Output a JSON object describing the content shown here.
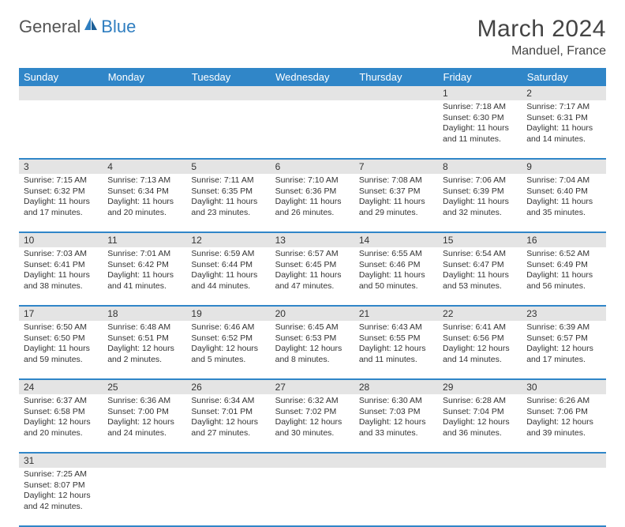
{
  "logo": {
    "text1": "General",
    "text2": "Blue"
  },
  "title": "March 2024",
  "location": "Manduel, France",
  "colors": {
    "header_bg": "#3086c8",
    "header_text": "#ffffff",
    "daynum_bg": "#e4e4e4",
    "row_divider": "#3086c8",
    "logo_blue": "#2f7ec0",
    "text": "#333333",
    "background": "#ffffff"
  },
  "weekdays": [
    "Sunday",
    "Monday",
    "Tuesday",
    "Wednesday",
    "Thursday",
    "Friday",
    "Saturday"
  ],
  "weeks": [
    [
      null,
      null,
      null,
      null,
      null,
      {
        "n": "1",
        "sr": "7:18 AM",
        "ss": "6:30 PM",
        "dl": "11 hours and 11 minutes."
      },
      {
        "n": "2",
        "sr": "7:17 AM",
        "ss": "6:31 PM",
        "dl": "11 hours and 14 minutes."
      }
    ],
    [
      {
        "n": "3",
        "sr": "7:15 AM",
        "ss": "6:32 PM",
        "dl": "11 hours and 17 minutes."
      },
      {
        "n": "4",
        "sr": "7:13 AM",
        "ss": "6:34 PM",
        "dl": "11 hours and 20 minutes."
      },
      {
        "n": "5",
        "sr": "7:11 AM",
        "ss": "6:35 PM",
        "dl": "11 hours and 23 minutes."
      },
      {
        "n": "6",
        "sr": "7:10 AM",
        "ss": "6:36 PM",
        "dl": "11 hours and 26 minutes."
      },
      {
        "n": "7",
        "sr": "7:08 AM",
        "ss": "6:37 PM",
        "dl": "11 hours and 29 minutes."
      },
      {
        "n": "8",
        "sr": "7:06 AM",
        "ss": "6:39 PM",
        "dl": "11 hours and 32 minutes."
      },
      {
        "n": "9",
        "sr": "7:04 AM",
        "ss": "6:40 PM",
        "dl": "11 hours and 35 minutes."
      }
    ],
    [
      {
        "n": "10",
        "sr": "7:03 AM",
        "ss": "6:41 PM",
        "dl": "11 hours and 38 minutes."
      },
      {
        "n": "11",
        "sr": "7:01 AM",
        "ss": "6:42 PM",
        "dl": "11 hours and 41 minutes."
      },
      {
        "n": "12",
        "sr": "6:59 AM",
        "ss": "6:44 PM",
        "dl": "11 hours and 44 minutes."
      },
      {
        "n": "13",
        "sr": "6:57 AM",
        "ss": "6:45 PM",
        "dl": "11 hours and 47 minutes."
      },
      {
        "n": "14",
        "sr": "6:55 AM",
        "ss": "6:46 PM",
        "dl": "11 hours and 50 minutes."
      },
      {
        "n": "15",
        "sr": "6:54 AM",
        "ss": "6:47 PM",
        "dl": "11 hours and 53 minutes."
      },
      {
        "n": "16",
        "sr": "6:52 AM",
        "ss": "6:49 PM",
        "dl": "11 hours and 56 minutes."
      }
    ],
    [
      {
        "n": "17",
        "sr": "6:50 AM",
        "ss": "6:50 PM",
        "dl": "11 hours and 59 minutes."
      },
      {
        "n": "18",
        "sr": "6:48 AM",
        "ss": "6:51 PM",
        "dl": "12 hours and 2 minutes."
      },
      {
        "n": "19",
        "sr": "6:46 AM",
        "ss": "6:52 PM",
        "dl": "12 hours and 5 minutes."
      },
      {
        "n": "20",
        "sr": "6:45 AM",
        "ss": "6:53 PM",
        "dl": "12 hours and 8 minutes."
      },
      {
        "n": "21",
        "sr": "6:43 AM",
        "ss": "6:55 PM",
        "dl": "12 hours and 11 minutes."
      },
      {
        "n": "22",
        "sr": "6:41 AM",
        "ss": "6:56 PM",
        "dl": "12 hours and 14 minutes."
      },
      {
        "n": "23",
        "sr": "6:39 AM",
        "ss": "6:57 PM",
        "dl": "12 hours and 17 minutes."
      }
    ],
    [
      {
        "n": "24",
        "sr": "6:37 AM",
        "ss": "6:58 PM",
        "dl": "12 hours and 20 minutes."
      },
      {
        "n": "25",
        "sr": "6:36 AM",
        "ss": "7:00 PM",
        "dl": "12 hours and 24 minutes."
      },
      {
        "n": "26",
        "sr": "6:34 AM",
        "ss": "7:01 PM",
        "dl": "12 hours and 27 minutes."
      },
      {
        "n": "27",
        "sr": "6:32 AM",
        "ss": "7:02 PM",
        "dl": "12 hours and 30 minutes."
      },
      {
        "n": "28",
        "sr": "6:30 AM",
        "ss": "7:03 PM",
        "dl": "12 hours and 33 minutes."
      },
      {
        "n": "29",
        "sr": "6:28 AM",
        "ss": "7:04 PM",
        "dl": "12 hours and 36 minutes."
      },
      {
        "n": "30",
        "sr": "6:26 AM",
        "ss": "7:06 PM",
        "dl": "12 hours and 39 minutes."
      }
    ],
    [
      {
        "n": "31",
        "sr": "7:25 AM",
        "ss": "8:07 PM",
        "dl": "12 hours and 42 minutes."
      },
      null,
      null,
      null,
      null,
      null,
      null
    ]
  ],
  "labels": {
    "sunrise": "Sunrise: ",
    "sunset": "Sunset: ",
    "daylight": "Daylight: "
  }
}
